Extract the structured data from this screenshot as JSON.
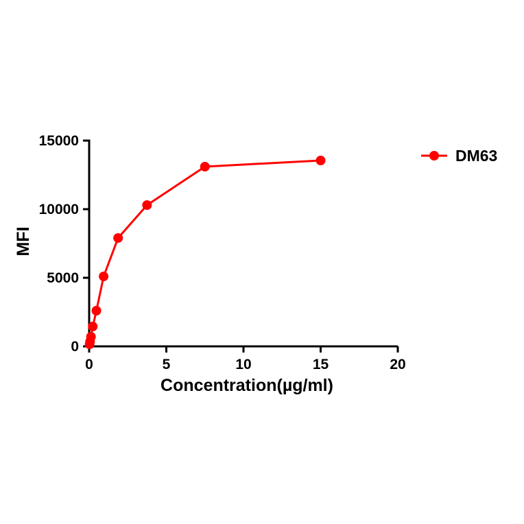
{
  "chart_data": {
    "type": "line",
    "title": "",
    "xlabel": "Concentration(µg/ml)",
    "ylabel": "MFI",
    "xlim": [
      0,
      20
    ],
    "ylim": [
      0,
      15000
    ],
    "xticks": [
      0,
      5,
      10,
      15,
      20
    ],
    "yticks": [
      0,
      5000,
      10000,
      15000
    ],
    "grid": false,
    "legend_position": "right",
    "axis_color": "#000000",
    "series": [
      {
        "name": "DM63",
        "color": "#ff0000",
        "marker": "circle",
        "x": [
          0.029,
          0.059,
          0.117,
          0.234,
          0.469,
          0.938,
          1.875,
          3.75,
          7.5,
          15
        ],
        "y": [
          150,
          350,
          700,
          1450,
          2600,
          5100,
          7900,
          10300,
          13100,
          13550
        ]
      }
    ]
  }
}
